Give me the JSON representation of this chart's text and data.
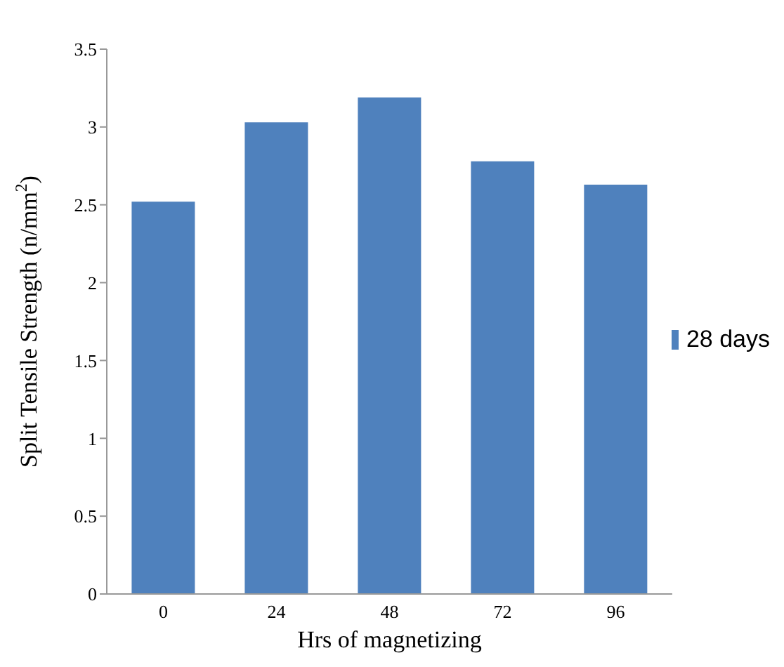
{
  "chart_data": {
    "type": "bar",
    "xlabel": "Hrs of magnetizing",
    "ylabel": "Split Tensile Strength (n/mm$^{2}$)",
    "categories": [
      "0",
      "24",
      "48",
      "72",
      "96"
    ],
    "series": [
      {
        "name": "28 days",
        "color": "#4f81bd",
        "values": [
          2.52,
          3.03,
          3.19,
          2.78,
          2.63
        ]
      }
    ],
    "ylim": [
      0,
      3.5
    ],
    "yticks": [
      0,
      0.5,
      1,
      1.5,
      2,
      2.5,
      3,
      3.5
    ],
    "grid": false,
    "legend": "right"
  }
}
